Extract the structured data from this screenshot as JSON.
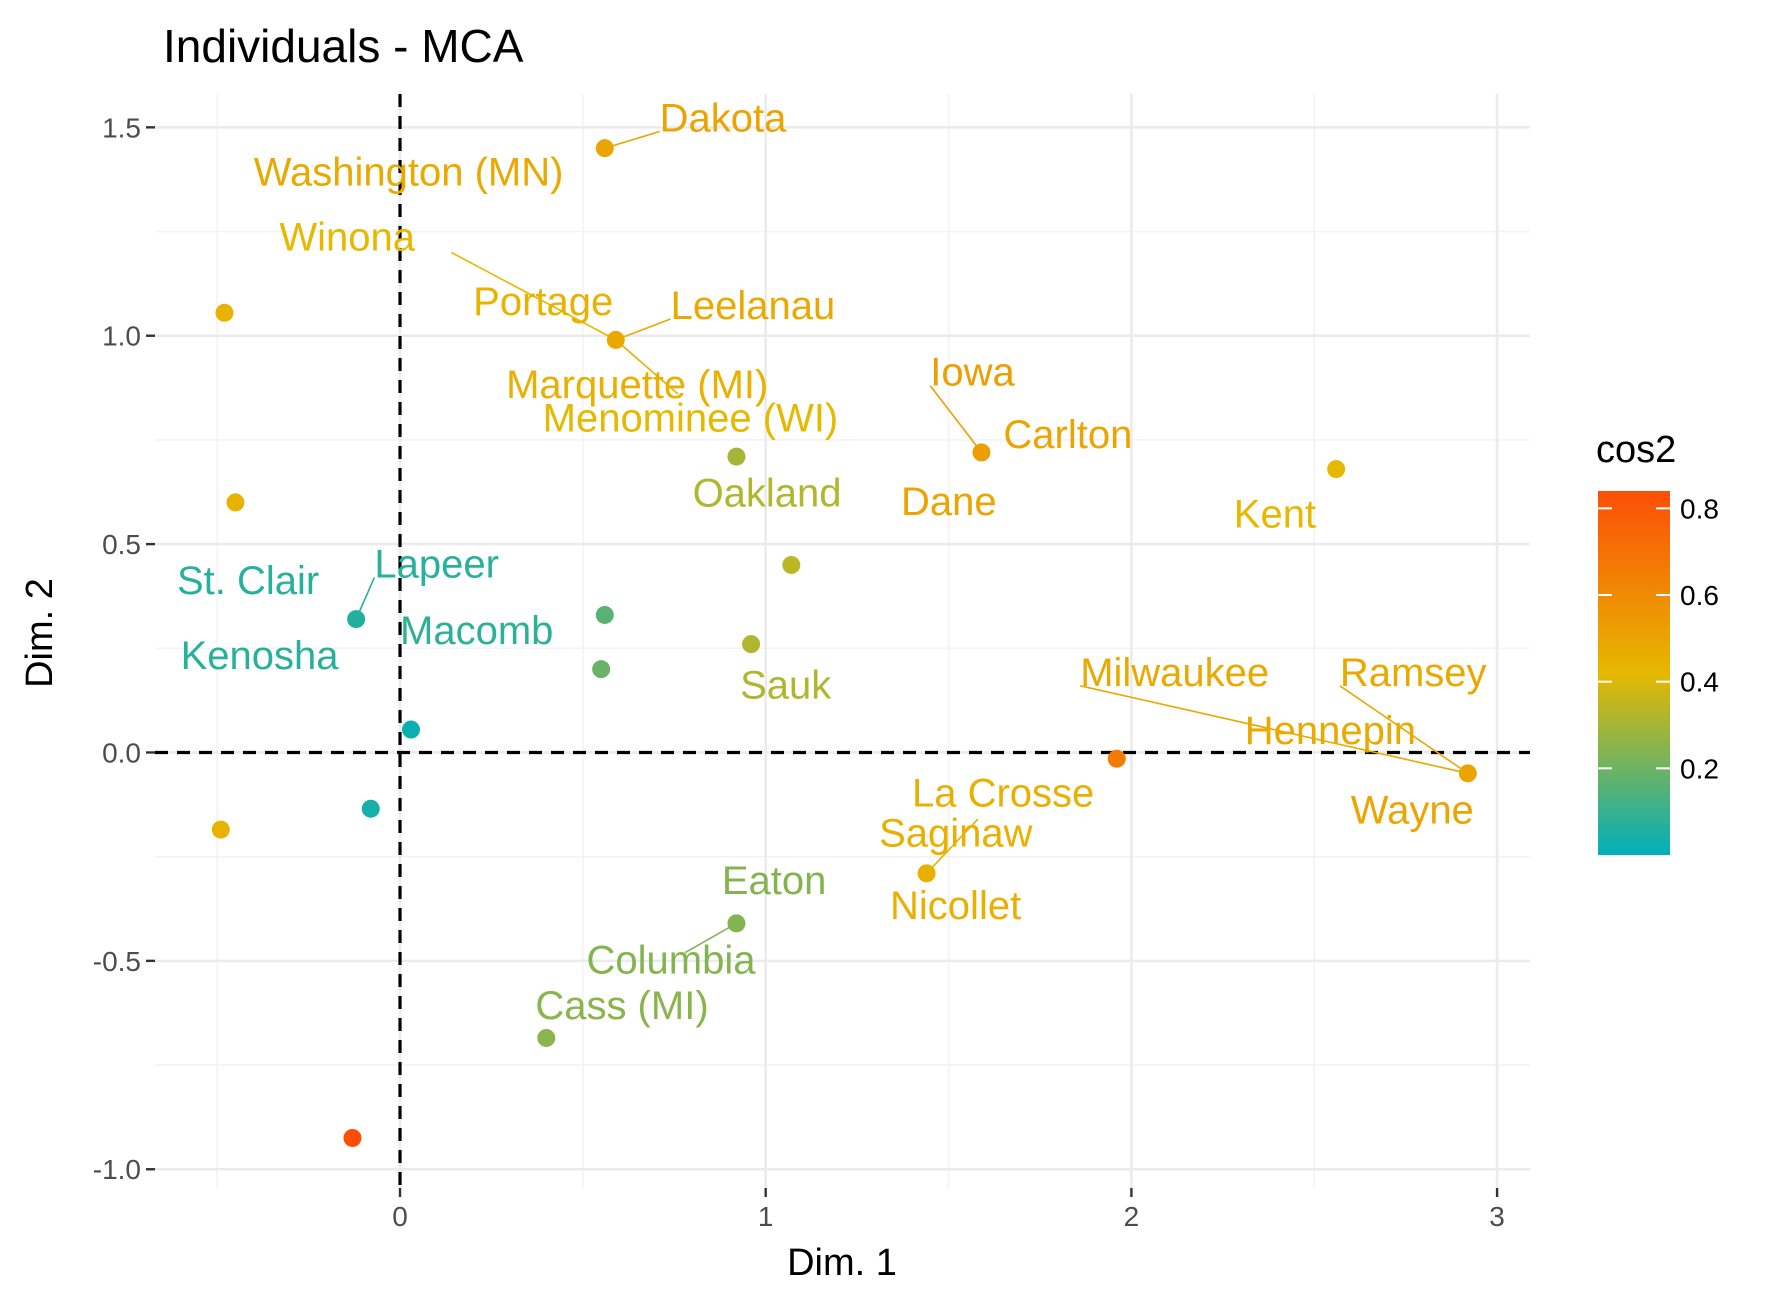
{
  "chart_data": {
    "type": "scatter",
    "title": "Individuals - MCA",
    "xlabel": "Dim. 1",
    "ylabel": "Dim. 2",
    "xlim": [
      -0.67,
      3.09
    ],
    "ylim": [
      -1.045,
      1.58
    ],
    "xticks": [
      0,
      1,
      2,
      3
    ],
    "yticks": [
      -1.0,
      -0.5,
      0.0,
      0.5,
      1.0,
      1.5
    ],
    "xtick_labels": [
      "0",
      "1",
      "2",
      "3"
    ],
    "ytick_labels": [
      "-1.0",
      "-0.5",
      "0.0",
      "0.5",
      "1.0",
      "1.5"
    ],
    "grid": true,
    "reference_lines": [
      {
        "axis": "x",
        "value": 0,
        "style": "dashed"
      },
      {
        "axis": "y",
        "value": 0,
        "style": "dashed"
      }
    ],
    "legend": {
      "title": "cos2",
      "position": "right",
      "ticks": [
        0.2,
        0.4,
        0.6,
        0.8
      ],
      "tick_labels": [
        "0.2",
        "0.4",
        "0.6",
        "0.8"
      ],
      "range": [
        0.0,
        0.84
      ],
      "gradient": [
        {
          "value": 0.0,
          "color": "#00AFBB"
        },
        {
          "value": 0.42,
          "color": "#E7B800"
        },
        {
          "value": 0.84,
          "color": "#FC4E07"
        }
      ]
    },
    "points": [
      {
        "x": 0.56,
        "y": 1.45,
        "cos2": 0.5
      },
      {
        "x": 0.59,
        "y": 0.99,
        "cos2": 0.48
      },
      {
        "x": 1.59,
        "y": 0.72,
        "cos2": 0.52
      },
      {
        "x": 2.56,
        "y": 0.68,
        "cos2": 0.42
      },
      {
        "x": 2.92,
        "y": -0.05,
        "cos2": 0.5
      },
      {
        "x": 1.96,
        "y": -0.015,
        "cos2": 0.66
      },
      {
        "x": 1.44,
        "y": -0.29,
        "cos2": 0.45
      },
      {
        "x": 0.92,
        "y": 0.71,
        "cos2": 0.3
      },
      {
        "x": 1.07,
        "y": 0.45,
        "cos2": 0.34
      },
      {
        "x": 0.96,
        "y": 0.26,
        "cos2": 0.32
      },
      {
        "x": 0.56,
        "y": 0.33,
        "cos2": 0.16
      },
      {
        "x": 0.55,
        "y": 0.2,
        "cos2": 0.19
      },
      {
        "x": 0.92,
        "y": -0.41,
        "cos2": 0.24
      },
      {
        "x": 0.4,
        "y": -0.685,
        "cos2": 0.25
      },
      {
        "x": -0.12,
        "y": 0.32,
        "cos2": 0.06
      },
      {
        "x": 0.03,
        "y": 0.055,
        "cos2": 0.02
      },
      {
        "x": -0.08,
        "y": -0.135,
        "cos2": 0.04
      },
      {
        "x": -0.48,
        "y": 1.055,
        "cos2": 0.44
      },
      {
        "x": -0.45,
        "y": 0.6,
        "cos2": 0.44
      },
      {
        "x": -0.49,
        "y": -0.185,
        "cos2": 0.44
      },
      {
        "x": -0.13,
        "y": -0.925,
        "cos2": 0.84
      }
    ],
    "labels": [
      {
        "text": "Dakota",
        "x": 0.71,
        "y": 1.49,
        "cos2": 0.5,
        "point": 0
      },
      {
        "text": "Washington (MN)",
        "x": -0.4,
        "y": 1.36,
        "cos2": 0.48
      },
      {
        "text": "Winona",
        "x": -0.33,
        "y": 1.205,
        "cos2": 0.42,
        "point": 1,
        "from_x": 0.14,
        "from_y": 1.2
      },
      {
        "text": "Portage",
        "x": 0.2,
        "y": 1.05,
        "cos2": 0.44
      },
      {
        "text": "Leelanau",
        "x": 0.74,
        "y": 1.04,
        "cos2": 0.48,
        "point": 1
      },
      {
        "text": "Marquette (MI)",
        "x": 0.29,
        "y": 0.85,
        "cos2": 0.45,
        "point": 1,
        "from_x": 0.76,
        "from_y": 0.86
      },
      {
        "text": "Menominee (WI)",
        "x": 0.39,
        "y": 0.77,
        "cos2": 0.42
      },
      {
        "text": "Iowa",
        "x": 1.45,
        "y": 0.88,
        "cos2": 0.52,
        "point": 2
      },
      {
        "text": "Carlton",
        "x": 1.65,
        "y": 0.73,
        "cos2": 0.5
      },
      {
        "text": "Dane",
        "x": 1.37,
        "y": 0.57,
        "cos2": 0.5
      },
      {
        "text": "Kent",
        "x": 2.28,
        "y": 0.54,
        "cos2": 0.42
      },
      {
        "text": "Oakland",
        "x": 0.8,
        "y": 0.59,
        "cos2": 0.32
      },
      {
        "text": "Sauk",
        "x": 0.93,
        "y": 0.13,
        "cos2": 0.32
      },
      {
        "text": "Macomb",
        "x": 0.0,
        "y": 0.26,
        "cos2": 0.08
      },
      {
        "text": "Lapeer",
        "x": -0.07,
        "y": 0.42,
        "cos2": 0.07,
        "point": 14
      },
      {
        "text": "St. Clair",
        "x": -0.61,
        "y": 0.38,
        "cos2": 0.07
      },
      {
        "text": "Kenosha",
        "x": -0.6,
        "y": 0.2,
        "cos2": 0.07
      },
      {
        "text": "Milwaukee",
        "x": 1.86,
        "y": 0.16,
        "cos2": 0.48,
        "point": 4
      },
      {
        "text": "Ramsey",
        "x": 2.57,
        "y": 0.16,
        "cos2": 0.48,
        "point": 4
      },
      {
        "text": "Hennepin",
        "x": 2.31,
        "y": 0.02,
        "cos2": 0.48
      },
      {
        "text": "Wayne",
        "x": 2.6,
        "y": -0.17,
        "cos2": 0.5
      },
      {
        "text": "La Crosse",
        "x": 1.4,
        "y": -0.13,
        "cos2": 0.45
      },
      {
        "text": "Saginaw",
        "x": 1.31,
        "y": -0.225,
        "cos2": 0.45,
        "point": 6,
        "from_x": 1.58,
        "from_y": -0.16
      },
      {
        "text": "Nicollet",
        "x": 1.34,
        "y": -0.4,
        "cos2": 0.45
      },
      {
        "text": "Eaton",
        "x": 0.88,
        "y": -0.34,
        "cos2": 0.24
      },
      {
        "text": "Columbia",
        "x": 0.51,
        "y": -0.53,
        "cos2": 0.24,
        "point": 12,
        "from_x": 0.78,
        "from_y": -0.48
      },
      {
        "text": "Cass (MI)",
        "x": 0.37,
        "y": -0.64,
        "cos2": 0.25
      }
    ]
  }
}
